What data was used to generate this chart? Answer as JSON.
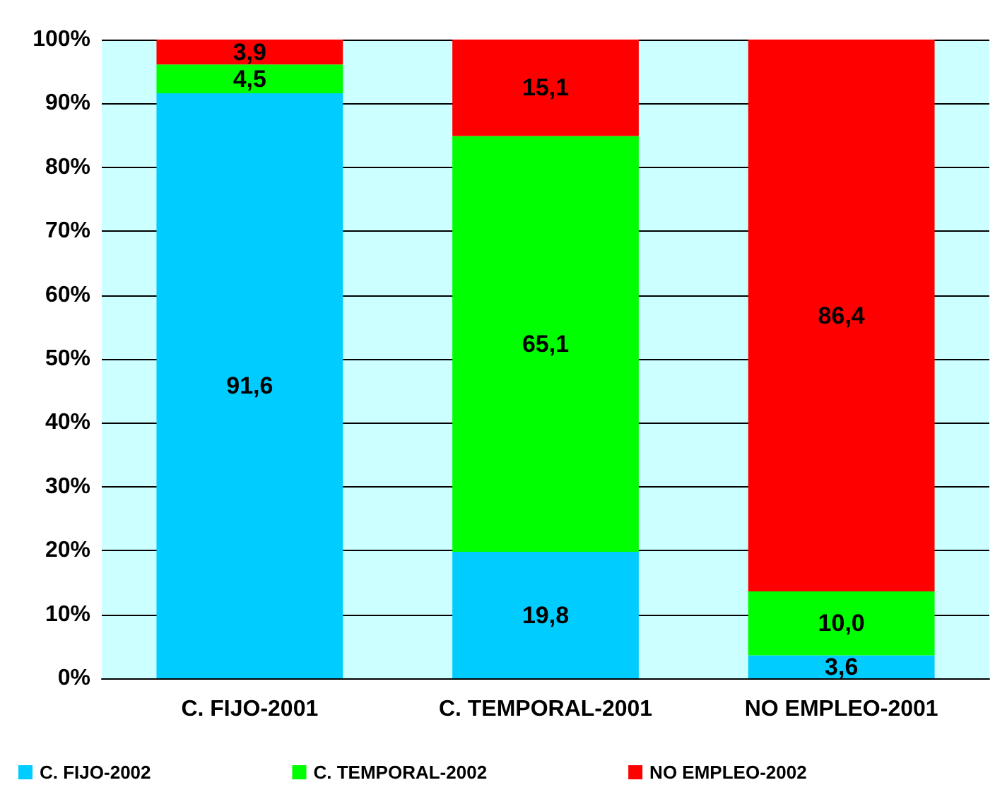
{
  "chart_data": {
    "type": "bar",
    "stacked": true,
    "categories": [
      "C. FIJO-2001",
      "C. TEMPORAL-2001",
      "NO EMPLEO-2001"
    ],
    "series": [
      {
        "name": "C. FIJO-2002",
        "color": "#00ccff",
        "values": [
          91.6,
          19.8,
          3.6
        ],
        "value_labels": [
          "91,6",
          "19,8",
          "3,6"
        ]
      },
      {
        "name": "C. TEMPORAL-2002",
        "color": "#00ff00",
        "values": [
          4.5,
          65.1,
          10.0
        ],
        "value_labels": [
          "4,5",
          "65,1",
          "10,0"
        ]
      },
      {
        "name": "NO EMPLEO-2002",
        "color": "#ff0000",
        "values": [
          3.9,
          15.1,
          86.4
        ],
        "value_labels": [
          "3,9",
          "15,1",
          "86,4"
        ]
      }
    ],
    "ylim": [
      0,
      100
    ],
    "yticks": [
      {
        "value": 0,
        "label": "0%"
      },
      {
        "value": 10,
        "label": "10%"
      },
      {
        "value": 20,
        "label": "20%"
      },
      {
        "value": 30,
        "label": "30%"
      },
      {
        "value": 40,
        "label": "40%"
      },
      {
        "value": 50,
        "label": "50%"
      },
      {
        "value": 60,
        "label": "60%"
      },
      {
        "value": 70,
        "label": "70%"
      },
      {
        "value": 80,
        "label": "80%"
      },
      {
        "value": 90,
        "label": "90%"
      },
      {
        "value": 100,
        "label": "100%"
      }
    ],
    "grid": "y",
    "legend": "bottom"
  }
}
